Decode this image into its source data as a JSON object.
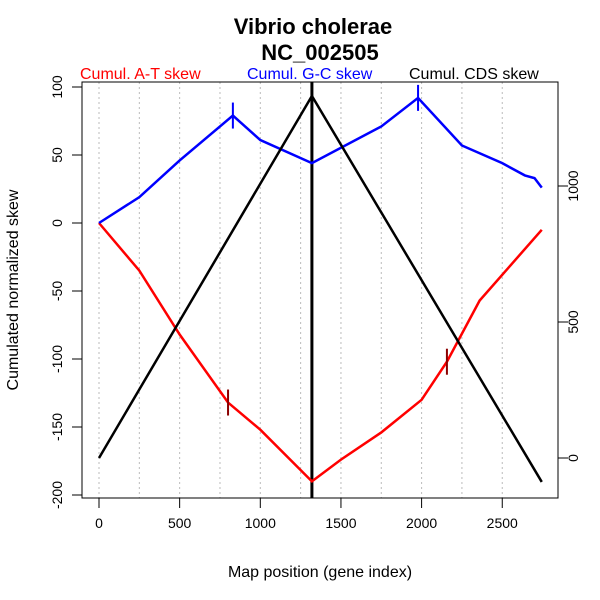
{
  "chart_data": {
    "type": "line",
    "title": "Vibrio cholerae",
    "subtitle": "NC_002505",
    "xlabel": "Map position (gene index)",
    "ylabel": "Cumulated normalized skew",
    "xlim": [
      0,
      2745
    ],
    "ylim": [
      -200,
      100
    ],
    "y2lim": [
      -100,
      1330
    ],
    "x_ticks": [
      0,
      500,
      1000,
      1500,
      2000,
      2500
    ],
    "y_ticks": [
      100,
      50,
      0,
      -50,
      -100,
      -150,
      -200
    ],
    "y2_ticks": [
      0,
      500,
      1000
    ],
    "grid_x_step": 250,
    "origin_line_x": 1320,
    "legend": [
      {
        "label": "Cumul. A-T skew",
        "color": "#ff0000"
      },
      {
        "label": "Cumul. G-C skew",
        "color": "#0000ff"
      },
      {
        "label": "Cumul. CDS skew",
        "color": "#000000"
      }
    ],
    "series": [
      {
        "name": "Cumul. A-T skew",
        "color": "#ff0000",
        "axis": "left",
        "x": [
          0,
          250,
          500,
          800,
          1000,
          1320,
          1500,
          1750,
          2000,
          2157,
          2360,
          2745
        ],
        "y": [
          0,
          -35,
          -82,
          -132,
          -152,
          -190,
          -174,
          -154,
          -130,
          -102,
          -57,
          -5
        ]
      },
      {
        "name": "Cumul. G-C skew",
        "color": "#0000ff",
        "axis": "left",
        "x": [
          0,
          250,
          500,
          830,
          1000,
          1320,
          1750,
          1978,
          2250,
          2500,
          2640,
          2700,
          2745
        ],
        "y": [
          0,
          19,
          46,
          79,
          61,
          44,
          71,
          92,
          57,
          44,
          35,
          33,
          26
        ]
      },
      {
        "name": "Cumul. CDS skew",
        "color": "#000000",
        "axis": "right",
        "x": [
          0,
          1320,
          2745
        ],
        "y": [
          0,
          1331,
          -88
        ]
      }
    ],
    "markers": [
      {
        "series": "Cumul. G-C skew",
        "x": 830,
        "y": 79,
        "color": "#0000ff"
      },
      {
        "series": "Cumul. G-C skew",
        "x": 1978,
        "y": 92,
        "color": "#0000ff"
      },
      {
        "series": "Cumul. A-T skew",
        "x": 800,
        "y": -132,
        "color": "#8b0000"
      },
      {
        "series": "Cumul. A-T skew",
        "x": 2157,
        "y": -102,
        "color": "#8b0000"
      }
    ]
  }
}
